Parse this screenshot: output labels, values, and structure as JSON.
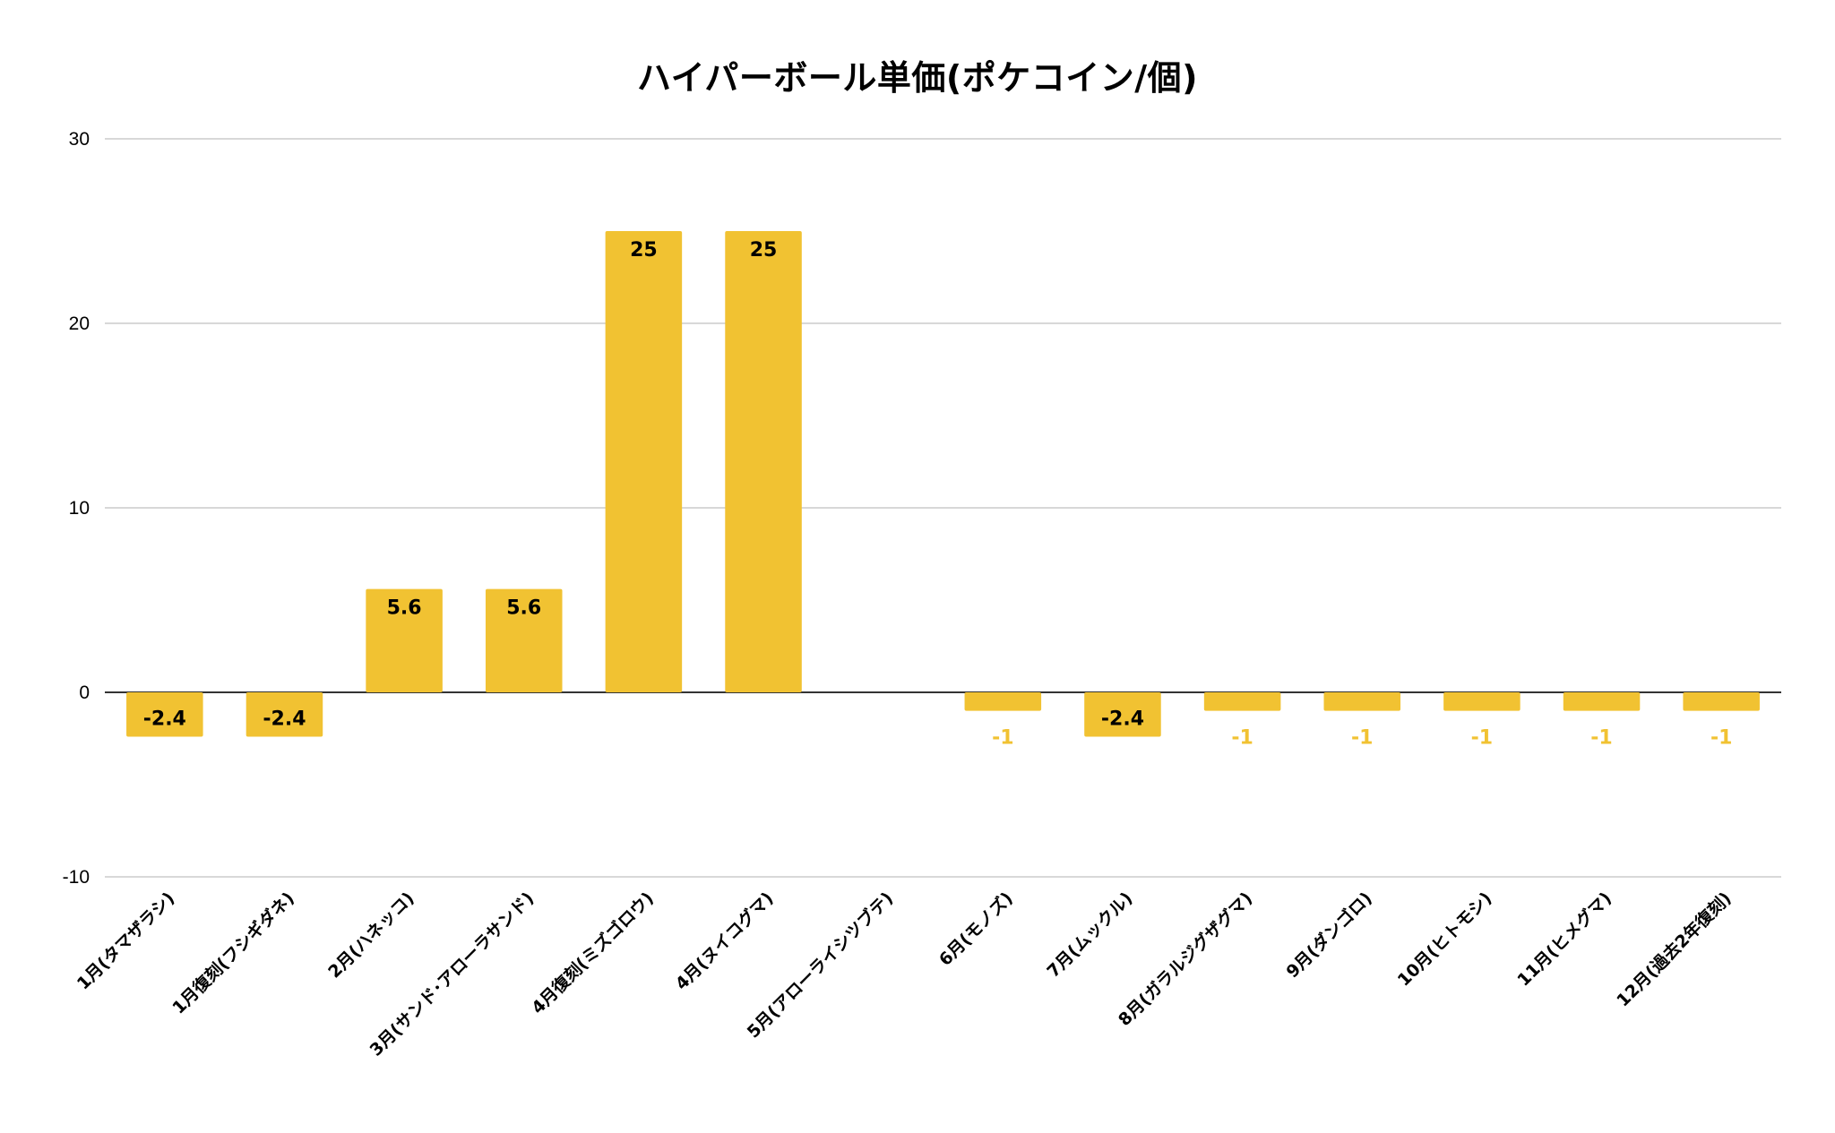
{
  "chart_data": {
    "type": "bar",
    "title": "ハイパーボール単価(ポケコイン/個)",
    "xlabel": "",
    "ylabel": "",
    "ylim": [
      -10,
      30
    ],
    "yticks": [
      30,
      20,
      10,
      0,
      -10
    ],
    "grid": true,
    "legend": "none",
    "bar_color": "#f1c232",
    "categories": [
      "1月(タマザラシ)",
      "1月復刻(フシギダネ)",
      "2月(ハネッコ)",
      "3月(サンド･アローラサンド)",
      "4月復刻(ミズゴロウ)",
      "4月(ヌイコグマ)",
      "5月(アローライシツブテ)",
      "6月(モノズ)",
      "7月(ムックル)",
      "8月(ガラルジグザグマ)",
      "9月(ダンゴロ)",
      "10月(ヒトモシ)",
      "11月(ヒメグマ)",
      "12月(過去2年復刻)"
    ],
    "values": [
      -2.4,
      -2.4,
      5.6,
      5.6,
      25,
      25,
      null,
      -1,
      -2.4,
      -1,
      -1,
      -1,
      -1,
      -1
    ],
    "data_labels": [
      "-2.4",
      "-2.4",
      "5.6",
      "5.6",
      "25",
      "25",
      "",
      "-1",
      "-2.4",
      "-1",
      "-1",
      "-1",
      "-1",
      "-1"
    ]
  }
}
